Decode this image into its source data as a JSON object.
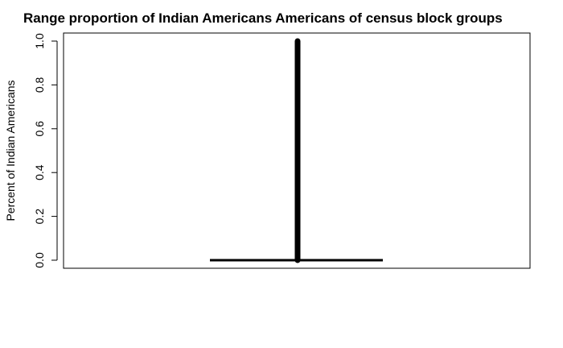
{
  "chart_data": {
    "type": "strip",
    "title": "Range proportion of Indian Americans Americans of census block groups",
    "xlabel": "",
    "ylabel": "Percent of Indian Americans",
    "ylim": [
      0,
      1
    ],
    "yticks": [
      0.0,
      0.2,
      0.4,
      0.6,
      0.8,
      1.0
    ],
    "ytick_labels": [
      "0.0",
      "0.2",
      "0.4",
      "0.6",
      "0.8",
      "1.0"
    ],
    "range": {
      "min": 0.0,
      "max": 1.0
    },
    "baseline": {
      "y": 0.0
    },
    "grid": false,
    "legend": "none"
  },
  "colors": {
    "ink": "#000000",
    "background": "#ffffff"
  }
}
